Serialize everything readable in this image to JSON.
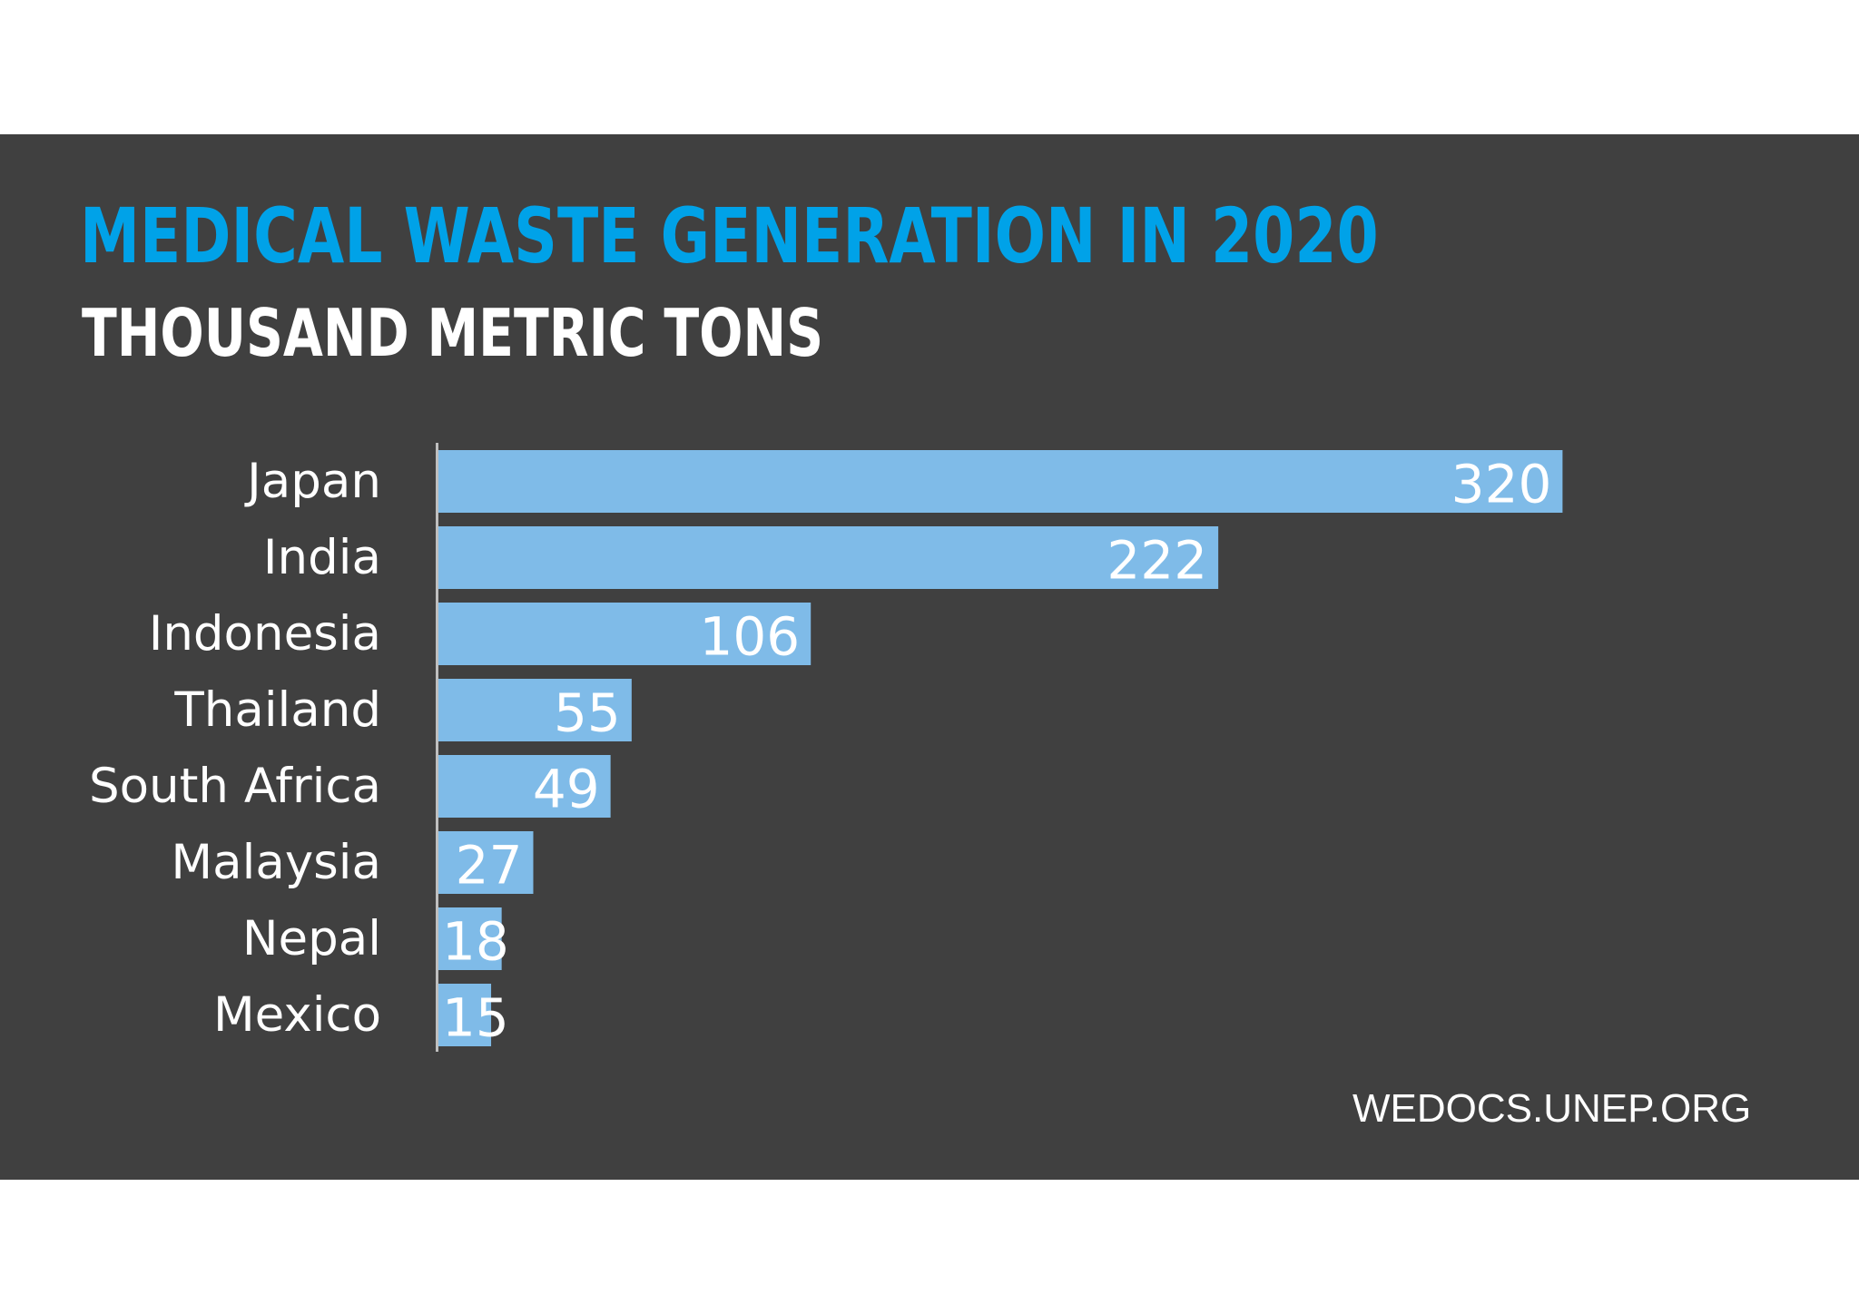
{
  "chart_data": {
    "type": "bar",
    "orientation": "horizontal",
    "title": "MEDICAL WASTE GENERATION IN 2020",
    "subtitle": "THOUSAND METRIC TONS",
    "categories": [
      "Japan",
      "India",
      "Indonesia",
      "Thailand",
      "South Africa",
      "Malaysia",
      "Nepal",
      "Mexico"
    ],
    "values": [
      320,
      222,
      106,
      55,
      49,
      27,
      18,
      15
    ],
    "data_labels": true,
    "grid": false,
    "legend": "none",
    "colors": {
      "bar": "#7fbbe8",
      "title": "#00a2e8",
      "background": "#404040"
    }
  },
  "source": "WEDOCS.UNEP.ORG"
}
